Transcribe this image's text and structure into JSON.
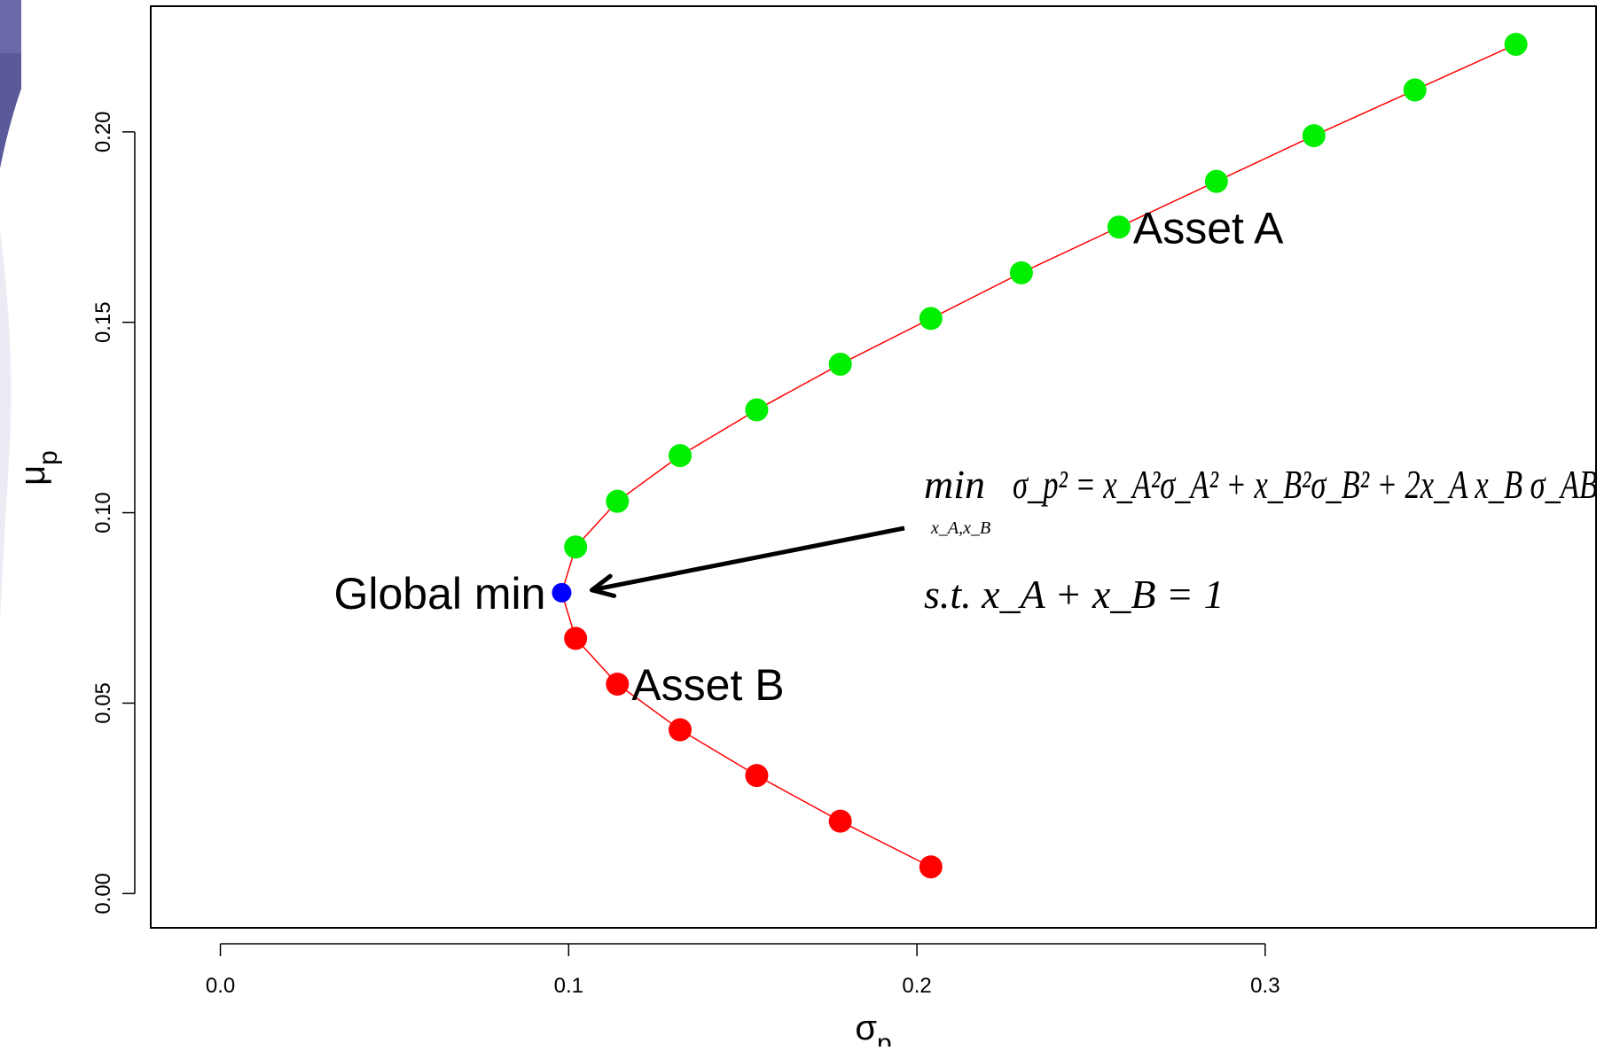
{
  "chart_data": {
    "type": "scatter",
    "xlabel": "σ",
    "xlabel_sub": "p",
    "ylabel": "μ",
    "ylabel_sub": "p",
    "xlim": [
      -0.02,
      0.395
    ],
    "ylim": [
      -0.009,
      0.233
    ],
    "x_ticks": [
      {
        "value": 0.0,
        "label": "0.0"
      },
      {
        "value": 0.1,
        "label": "0.1"
      },
      {
        "value": 0.2,
        "label": "0.2"
      },
      {
        "value": 0.3,
        "label": "0.3"
      }
    ],
    "y_ticks": [
      {
        "value": 0.0,
        "label": "0.00"
      },
      {
        "value": 0.05,
        "label": "0.05"
      },
      {
        "value": 0.1,
        "label": "0.10"
      },
      {
        "value": 0.15,
        "label": "0.15"
      },
      {
        "value": 0.2,
        "label": "0.20"
      }
    ],
    "colors": {
      "upper": "#00ee00",
      "lower": "#ff0000",
      "global_min": "#0000ff",
      "frontier_line": "#ff0000",
      "arrow": "#000000"
    },
    "series": [
      {
        "color": "#00ee00",
        "points": [
          {
            "x": 0.102,
            "y": 0.091
          },
          {
            "x": 0.114,
            "y": 0.103
          },
          {
            "x": 0.132,
            "y": 0.115
          },
          {
            "x": 0.154,
            "y": 0.127
          },
          {
            "x": 0.178,
            "y": 0.139
          },
          {
            "x": 0.204,
            "y": 0.151
          },
          {
            "x": 0.23,
            "y": 0.163
          },
          {
            "x": 0.258,
            "y": 0.175
          },
          {
            "x": 0.286,
            "y": 0.187
          },
          {
            "x": 0.314,
            "y": 0.199
          },
          {
            "x": 0.343,
            "y": 0.211
          },
          {
            "x": 0.372,
            "y": 0.223
          }
        ]
      },
      {
        "color": "#0000ff",
        "points": [
          {
            "x": 0.098,
            "y": 0.079
          }
        ]
      },
      {
        "color": "#ff0000",
        "points": [
          {
            "x": 0.102,
            "y": 0.067
          },
          {
            "x": 0.114,
            "y": 0.055
          },
          {
            "x": 0.132,
            "y": 0.043
          },
          {
            "x": 0.154,
            "y": 0.031
          },
          {
            "x": 0.178,
            "y": 0.019
          },
          {
            "x": 0.204,
            "y": 0.007
          }
        ]
      }
    ],
    "annotations": {
      "asset_a": {
        "text": "Asset A",
        "x": 0.258,
        "y": 0.175
      },
      "asset_b": {
        "text": "Asset B",
        "x": 0.114,
        "y": 0.055
      },
      "global_min": {
        "text": "Global min",
        "x": 0.098,
        "y": 0.079
      }
    },
    "formula": {
      "line1_min": "min",
      "line1_min_sub": "x_A,x_B",
      "line1": "σ_p² = x_A²σ_A² + x_B²σ_B² + 2x_A x_B σ_AB",
      "line2": "s.t. x_A + x_B = 1"
    }
  }
}
